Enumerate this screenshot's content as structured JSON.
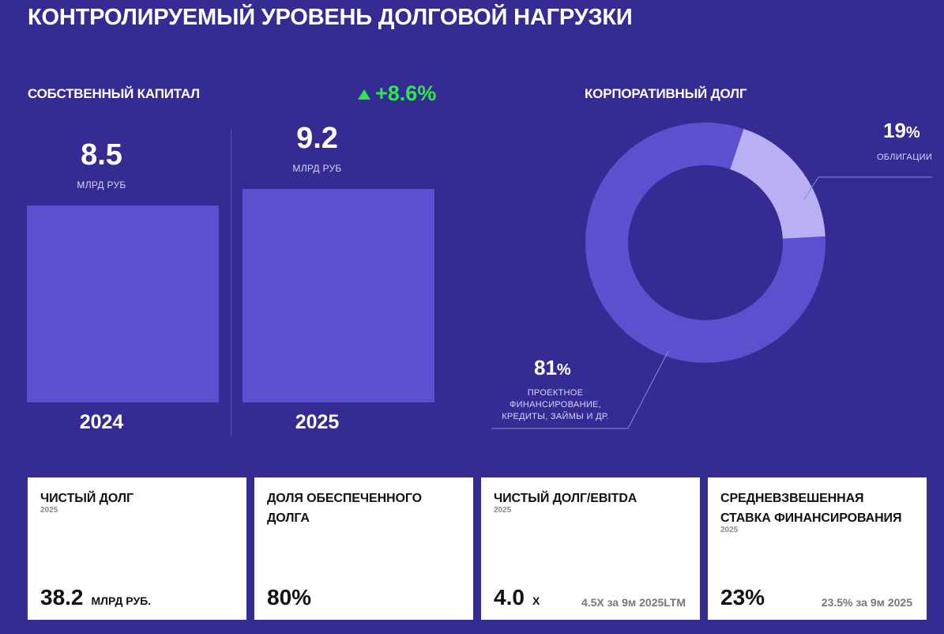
{
  "title": "КОНТРОЛИРУЕМЫЙ УРОВЕНЬ ДОЛГОВОЙ НАГРУЗКИ",
  "equity": {
    "label": "СОБСТВЕННЫЙ КАПИТАЛ",
    "growth": "+8.6%",
    "bars": [
      {
        "year": "2024",
        "value": "8.5",
        "unit": "МЛРД РУБ"
      },
      {
        "year": "2025",
        "value": "9.2",
        "unit": "МЛРД РУБ"
      }
    ]
  },
  "debt": {
    "label": "КОРПОРАТИВНЫЙ ДОЛГ",
    "segments": [
      {
        "pct": "81",
        "label_lines": [
          "ПРОЕКТНОЕ",
          "ФИНАНСИРОВАНИЕ,",
          "КРЕДИТЫ, ЗАЙМЫ И ДР."
        ]
      },
      {
        "pct": "19",
        "label_lines": [
          "ОБЛИГАЦИИ"
        ]
      }
    ],
    "pct_sign": "%"
  },
  "chart_data": [
    {
      "type": "bar",
      "title": "СОБСТВЕННЫЙ КАПИТАЛ",
      "categories": [
        "2024",
        "2025"
      ],
      "values": [
        8.5,
        9.2
      ],
      "ylabel": "МЛРД РУБ",
      "annotations": [
        "+8.6%"
      ]
    },
    {
      "type": "pie",
      "title": "КОРПОРАТИВНЫЙ ДОЛГ",
      "categories": [
        "ПРОЕКТНОЕ ФИНАНСИРОВАНИЕ, КРЕДИТЫ, ЗАЙМЫ И ДР.",
        "ОБЛИГАЦИИ"
      ],
      "values": [
        81,
        19
      ],
      "colors": [
        "#5c50cf",
        "#b8b0f3"
      ]
    }
  ],
  "cards": [
    {
      "title_lines": [
        "ЧИСТЫЙ ДОЛГ"
      ],
      "year": "2025",
      "value": "38.2",
      "unit": "МЛРД РУБ.",
      "aside": ""
    },
    {
      "title_lines": [
        "ДОЛЯ ОБЕСПЕЧЕННОГО",
        "ДОЛГА"
      ],
      "year": "",
      "value": "80%",
      "unit": "",
      "aside": ""
    },
    {
      "title_lines": [
        "ЧИСТЫЙ ДОЛГ/EBITDA"
      ],
      "year": "2025",
      "value": "4.0",
      "unit": "Х",
      "aside": "4.5Х  за 9м 2025LTM"
    },
    {
      "title_lines": [
        "СРЕДНЕВЗВЕШЕННАЯ",
        "СТАВКА ФИНАНСИРОВАНИЯ"
      ],
      "year": "2025",
      "value": "23%",
      "unit": "",
      "aside": "23.5% за 9м 2025"
    }
  ],
  "colors": {
    "background": "#352c93",
    "bar": "#5c50cf",
    "donut_main": "#5c50cf",
    "donut_secondary": "#b8b0f3",
    "growth": "#2ee84a"
  }
}
